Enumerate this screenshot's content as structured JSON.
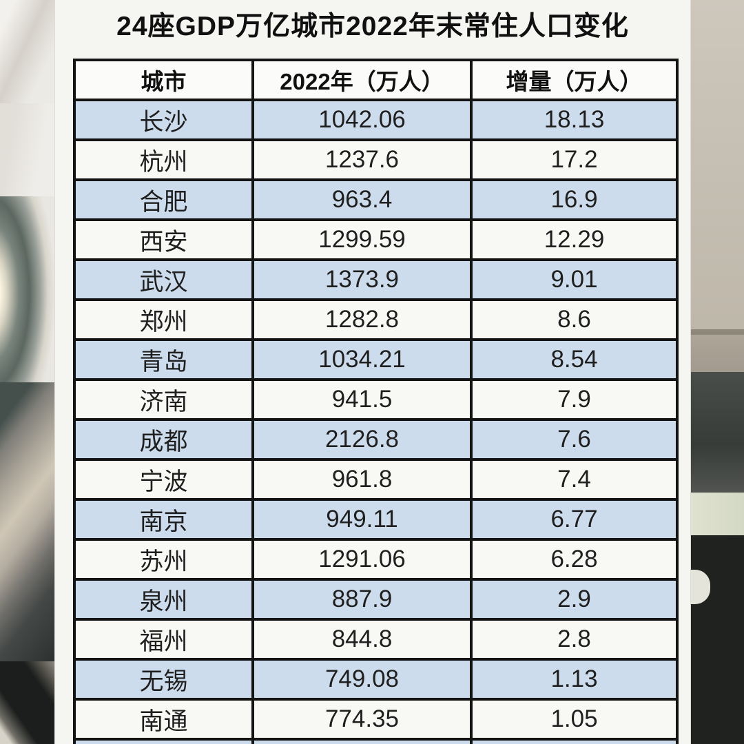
{
  "title": "24座GDP万亿城市2022年末常住人口变化",
  "chart_data": {
    "type": "table",
    "title": "24座GDP万亿城市2022年末常住人口变化",
    "columns": [
      "城市",
      "2022年（万人）",
      "增量（万人）"
    ],
    "rows": [
      [
        "长沙",
        "1042.06",
        "18.13"
      ],
      [
        "杭州",
        "1237.6",
        "17.2"
      ],
      [
        "合肥",
        "963.4",
        "16.9"
      ],
      [
        "西安",
        "1299.59",
        "12.29"
      ],
      [
        "武汉",
        "1373.9",
        "9.01"
      ],
      [
        "郑州",
        "1282.8",
        "8.6"
      ],
      [
        "青岛",
        "1034.21",
        "8.54"
      ],
      [
        "济南",
        "941.5",
        "7.9"
      ],
      [
        "成都",
        "2126.8",
        "7.6"
      ],
      [
        "宁波",
        "961.8",
        "7.4"
      ],
      [
        "南京",
        "949.11",
        "6.77"
      ],
      [
        "苏州",
        "1291.06",
        "6.28"
      ],
      [
        "泉州",
        "887.9",
        "2.9"
      ],
      [
        "福州",
        "844.8",
        "2.8"
      ],
      [
        "无锡",
        "749.08",
        "1.13"
      ],
      [
        "南通",
        "774.35",
        "1.05"
      ]
    ],
    "layout_hints": {
      "striped_rows": "first data row shaded, alternating",
      "visible_rows": 16,
      "last_row_clipped_at_bottom": true
    }
  },
  "colors": {
    "row_stripe_blue": "#cddcec",
    "row_plain_white": "#f8f9f5",
    "table_border": "#141414",
    "panel_background": "#f5f6f2",
    "text": "#1f1f1f"
  }
}
